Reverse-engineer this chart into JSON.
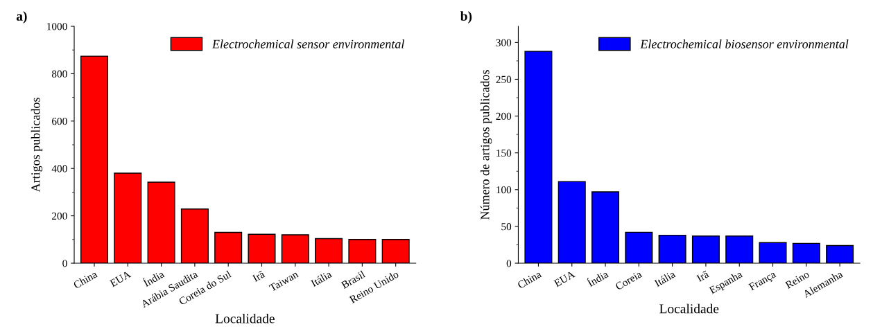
{
  "chart_data": [
    {
      "type": "bar",
      "title": "a)",
      "xlabel": "Localidade",
      "ylabel": "Artigos publicados",
      "categories": [
        "China",
        "EUA",
        "Índia",
        "Arábia Saudita",
        "Coreia do Sul",
        "Irã",
        "Taiwan",
        "Itália",
        "Brasil",
        "Reino Unido"
      ],
      "series": [
        {
          "name": "Electrochemical sensor environmental",
          "color": "#ff0000",
          "values": [
            874,
            380,
            342,
            229,
            130,
            122,
            120,
            104,
            100,
            100
          ]
        }
      ],
      "ylim": [
        0,
        1000
      ],
      "yticks": [
        0,
        200,
        400,
        600,
        800,
        1000
      ],
      "grid": false,
      "legend": "top right"
    },
    {
      "type": "bar",
      "title": "b)",
      "xlabel": "Localidade",
      "ylabel": "Número de artigos publicados",
      "categories": [
        "China",
        "EUA",
        "Índia",
        "Coreia",
        "Itália",
        "Irã",
        "Espanha",
        "França",
        "Reino",
        "Alemanha"
      ],
      "series": [
        {
          "name": "Electrochemical biosensor environmental",
          "color": "#0000ff",
          "values": [
            288,
            111,
            97,
            42,
            38,
            37,
            37,
            28,
            27,
            24
          ]
        }
      ],
      "ylim": [
        0,
        322
      ],
      "yticks": [
        0,
        50,
        100,
        150,
        200,
        250,
        300
      ],
      "grid": false,
      "legend": "top right"
    }
  ]
}
